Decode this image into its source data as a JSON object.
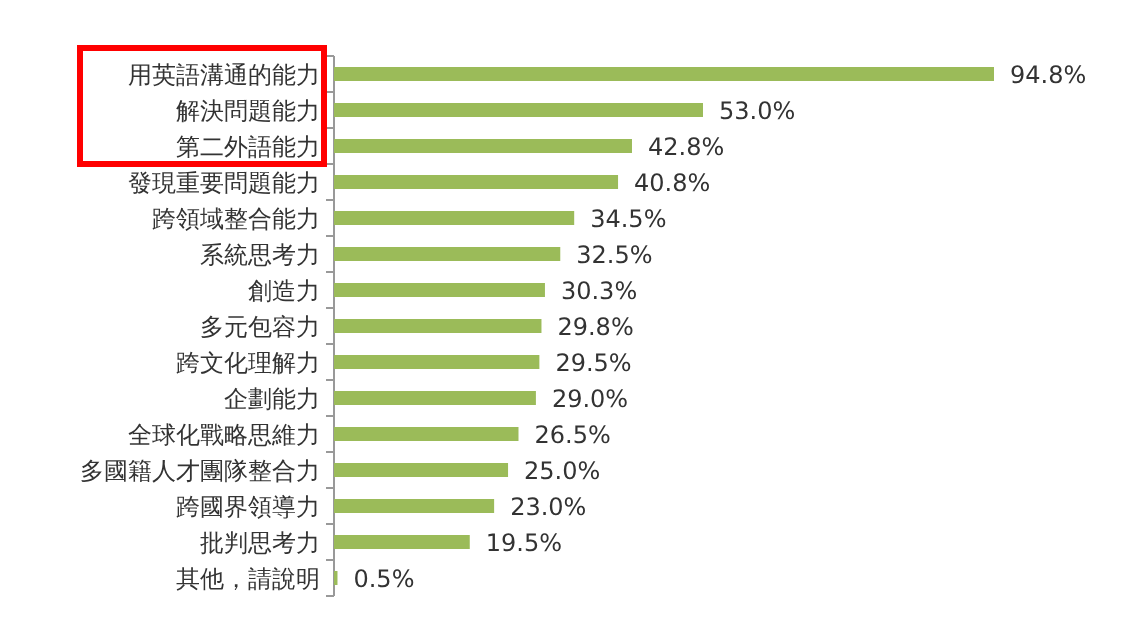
{
  "chart_data": {
    "type": "bar",
    "orientation": "horizontal",
    "color": "#9bbb59",
    "categories": [
      "用英語溝通的能力",
      "解決問題能力",
      "第二外語能力",
      "發現重要問題能力",
      "跨領域整合能力",
      "系統思考力",
      "創造力",
      "多元包容力",
      "跨文化理解力",
      "企劃能力",
      "全球化戰略思維力",
      "多國籍人才團隊整合力",
      "跨國界領導力",
      "批判思考力",
      "其他，請說明"
    ],
    "values": [
      94.8,
      53.0,
      42.8,
      40.8,
      34.5,
      32.5,
      30.3,
      29.8,
      29.5,
      29.0,
      26.5,
      25.0,
      23.0,
      19.5,
      0.5
    ],
    "value_labels": [
      "94.8%",
      "53.0%",
      "42.8%",
      "40.8%",
      "34.5%",
      "32.5%",
      "30.3%",
      "29.8%",
      "29.5%",
      "29.0%",
      "26.5%",
      "25.0%",
      "23.0%",
      "19.5%",
      "0.5%"
    ]
  }
}
